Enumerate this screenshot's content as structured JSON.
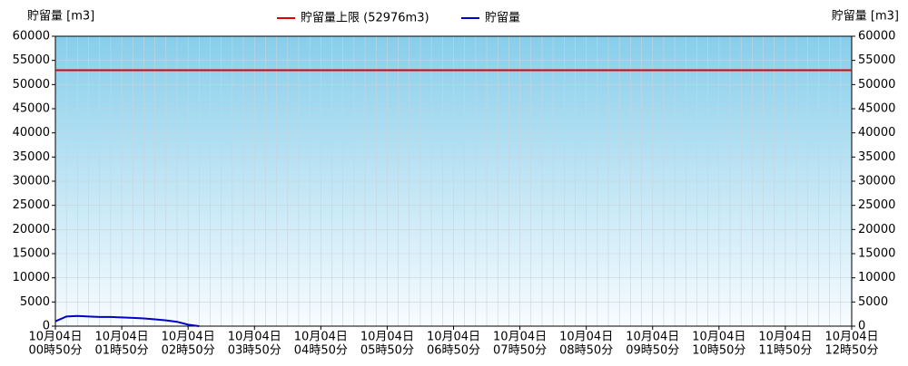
{
  "chart_data": {
    "type": "line",
    "ylabel": "貯留量 [m3]",
    "y2label": "貯留量 [m3]",
    "categories": [
      [
        "10月04日",
        "00時50分"
      ],
      null,
      null,
      null,
      null,
      null,
      [
        "10月04日",
        "01時50分"
      ],
      null,
      null,
      null,
      null,
      null,
      [
        "10月04日",
        "02時50分"
      ],
      null,
      null,
      null,
      null,
      null,
      [
        "10月04日",
        "03時50分"
      ],
      null,
      null,
      null,
      null,
      null,
      [
        "10月04日",
        "04時50分"
      ],
      null,
      null,
      null,
      null,
      null,
      [
        "10月04日",
        "05時50分"
      ],
      null,
      null,
      null,
      null,
      null,
      [
        "10月04日",
        "06時50分"
      ],
      null,
      null,
      null,
      null,
      null,
      [
        "10月04日",
        "07時50分"
      ],
      null,
      null,
      null,
      null,
      null,
      [
        "10月04日",
        "08時50分"
      ],
      null,
      null,
      null,
      null,
      null,
      [
        "10月04日",
        "09時50分"
      ],
      null,
      null,
      null,
      null,
      null,
      [
        "10月04日",
        "10時50分"
      ],
      null,
      null,
      null,
      null,
      null,
      [
        "10月04日",
        "11時50分"
      ],
      null,
      null,
      null,
      null,
      null,
      [
        "10月04日",
        "12時50分"
      ]
    ],
    "limit": {
      "name": "貯留量上限 (52976m3)",
      "value": 52976,
      "color": "#e00000"
    },
    "series": [
      {
        "name": "貯留量",
        "color": "#0000c8",
        "values": [
          1000,
          2000,
          2100,
          2000,
          1900,
          1900,
          1800,
          1700,
          1600,
          1400,
          1200,
          900,
          300,
          0,
          null,
          null,
          null,
          null,
          null,
          null,
          null,
          null,
          null,
          null,
          null,
          null,
          null,
          null,
          null,
          null,
          null,
          null,
          null,
          null,
          null,
          null,
          null,
          null,
          null,
          null,
          null,
          null,
          null,
          null,
          null,
          null,
          null,
          null,
          null,
          null,
          null,
          null,
          null,
          null,
          null,
          null,
          null,
          null,
          null,
          null,
          null,
          null,
          null,
          null,
          null,
          null,
          null,
          null,
          null,
          null,
          null,
          null,
          null
        ]
      }
    ],
    "ylim": [
      0,
      60000
    ],
    "yticks": [
      0,
      5000,
      10000,
      15000,
      20000,
      25000,
      30000,
      35000,
      40000,
      45000,
      50000,
      55000,
      60000
    ],
    "y2lim": [
      0,
      60000
    ],
    "y2ticks": [
      0,
      5000,
      10000,
      15000,
      20000,
      25000,
      30000,
      35000,
      40000,
      45000,
      50000,
      55000,
      60000
    ],
    "grid": true
  }
}
